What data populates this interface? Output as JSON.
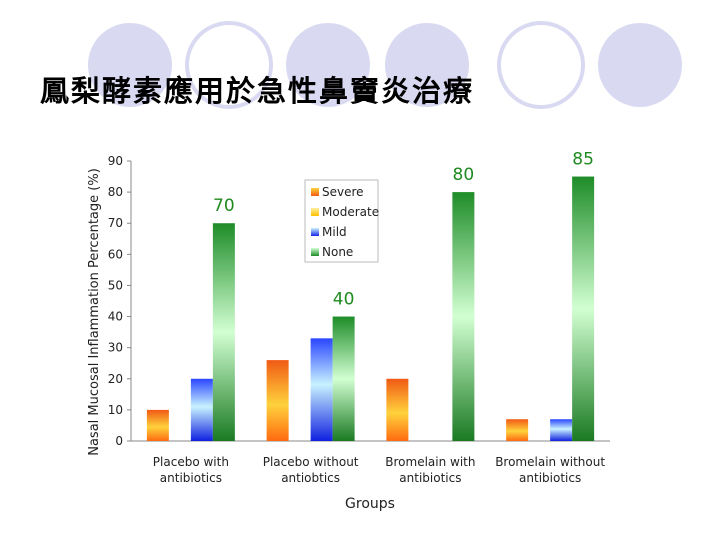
{
  "slide": {
    "title": "鳳梨酵素應用於急性鼻竇炎治療"
  },
  "chart_data": {
    "type": "bar",
    "ylabel": "Nasal Mucosal Inflammation Percentage (%)",
    "xlabel": "Groups",
    "ylim": [
      0,
      90
    ],
    "yticks": [
      0,
      10,
      20,
      30,
      40,
      50,
      60,
      70,
      80,
      90
    ],
    "categories": [
      [
        "Placebo with",
        "antibiotics"
      ],
      [
        "Placebo without",
        "antiobtics"
      ],
      [
        "Bromelain with",
        "antibiotics"
      ],
      [
        "Bromelain without",
        "antibiotics"
      ]
    ],
    "series": [
      {
        "name": "Severe",
        "values": [
          10,
          26,
          20,
          7
        ]
      },
      {
        "name": "Moderate",
        "values": [
          null,
          null,
          null,
          null
        ]
      },
      {
        "name": "Mild",
        "values": [
          20,
          33,
          0,
          7
        ]
      },
      {
        "name": "None",
        "values": [
          70,
          40,
          80,
          85
        ]
      }
    ],
    "data_labels": [
      {
        "category": 0,
        "series": "None",
        "text": "70"
      },
      {
        "category": 1,
        "series": "None",
        "text": "40"
      },
      {
        "category": 2,
        "series": "None",
        "text": "80"
      },
      {
        "category": 3,
        "series": "None",
        "text": "85"
      }
    ],
    "legend": "top-center",
    "colors": {
      "severe": "#f05a14",
      "moderate": "#ffd21e",
      "mild": "#1428e6",
      "none": "#1e8c28",
      "label": "#1f8a1f"
    }
  }
}
